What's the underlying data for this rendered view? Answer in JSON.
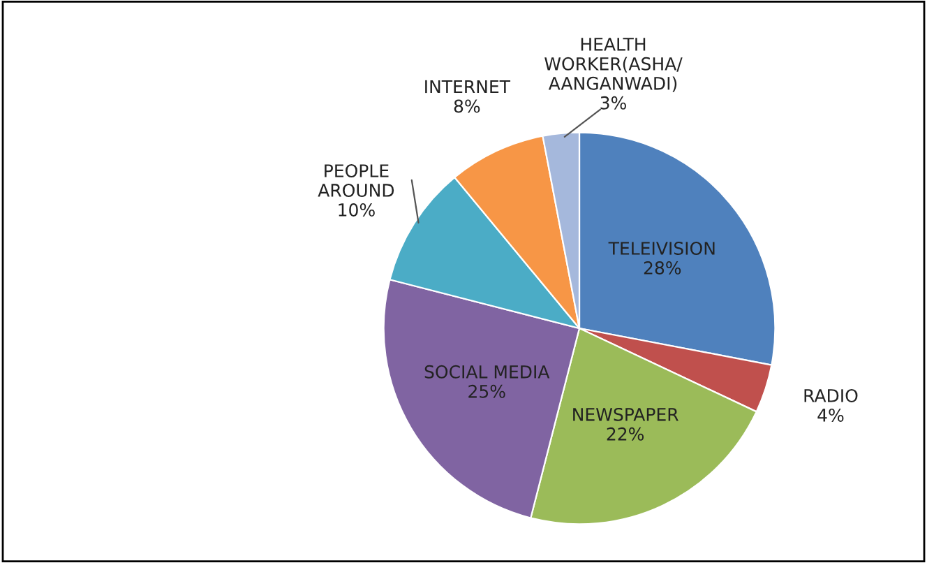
{
  "chart_data": {
    "type": "pie",
    "categories": [
      "TELEIVISION",
      "RADIO",
      "NEWSPAPER",
      "SOCIAL MEDIA",
      "PEOPLE\nAROUND",
      "INTERNET",
      "HEALTH\nWORKER(ASHA/\nAANGANWADI)"
    ],
    "values": [
      28,
      4,
      22,
      25,
      10,
      8,
      3
    ],
    "value_labels": [
      "28%",
      "4%",
      "22%",
      "25%",
      "10%",
      "8%",
      "3%"
    ],
    "colors": [
      "#4f81bd",
      "#c0504d",
      "#9bbb59",
      "#8064a2",
      "#4bacc6",
      "#f79646",
      "#a5b8dc"
    ]
  }
}
